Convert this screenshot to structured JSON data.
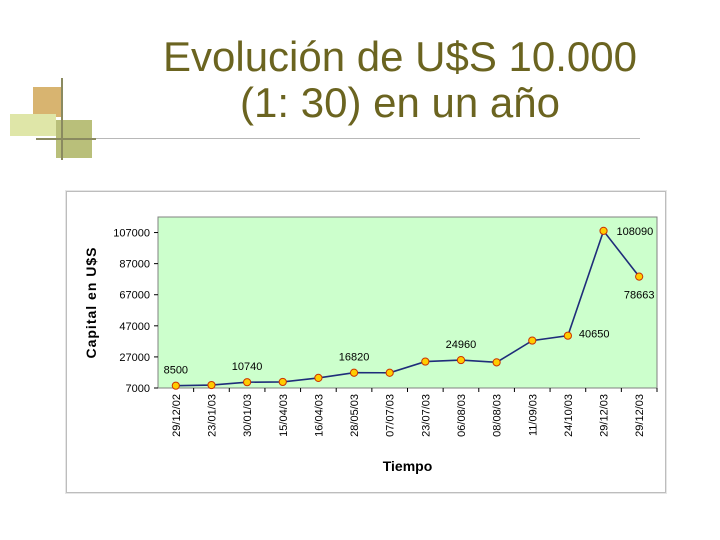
{
  "slide": {
    "title_line1": "Evolución de U$S 10.000",
    "title_line2": "(1: 30) en un año"
  },
  "colors": {
    "title": "#6b6420",
    "plot_background": "#ccffcc",
    "line": "#1f2d7a",
    "marker_fill": "#ffcc00",
    "marker_stroke": "#cc3300"
  },
  "chart_data": {
    "type": "line",
    "title": "",
    "xlabel": "Tiempo",
    "ylabel": "Capital en U$S",
    "ylim": [
      7000,
      117000
    ],
    "yticks": [
      "7000",
      "27000",
      "47000",
      "67000",
      "87000",
      "107000"
    ],
    "categories": [
      "29/12/02",
      "23/01/03",
      "30/01/03",
      "15/04/03",
      "16/04/03",
      "28/05/03",
      "07/07/03",
      "23/07/03",
      "06/08/03",
      "08/08/03",
      "11/09/03",
      "24/10/03",
      "29/12/03",
      "29/12/03"
    ],
    "values": [
      8500,
      8900,
      10740,
      10900,
      13500,
      16820,
      16800,
      24000,
      24960,
      23500,
      37500,
      40650,
      108090,
      78663
    ],
    "data_labels": [
      {
        "index": 0,
        "text": "8500"
      },
      {
        "index": 2,
        "text": "10740"
      },
      {
        "index": 5,
        "text": "16820"
      },
      {
        "index": 8,
        "text": "24960"
      },
      {
        "index": 11,
        "text": "40650"
      },
      {
        "index": 12,
        "text": "108090"
      },
      {
        "index": 13,
        "text": "78663"
      }
    ],
    "grid": false,
    "legend": "none"
  }
}
